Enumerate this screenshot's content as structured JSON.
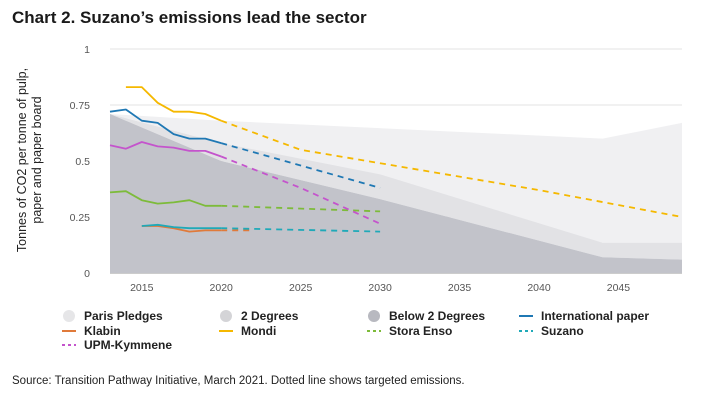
{
  "title": "Chart 2. Suzano’s emissions lead the sector",
  "source": "Source: Transition Pathway Initiative, March 2021. Dotted line shows targeted emissions.",
  "chart_data": {
    "type": "line",
    "ylabel_lines": [
      "Tonnes of CO2 per tonne of pulp,",
      "paper and paper board"
    ],
    "xlabel": "",
    "xlim": [
      2013,
      2049
    ],
    "ylim": [
      0,
      1
    ],
    "x_ticks": [
      2015,
      2020,
      2025,
      2030,
      2035,
      2040,
      2045
    ],
    "y_ticks": [
      {
        "value": 0,
        "label": "0"
      },
      {
        "value": 0.25,
        "label": "0.25"
      },
      {
        "value": 0.5,
        "label": "0.5"
      },
      {
        "value": 0.75,
        "label": "0.75"
      },
      {
        "value": 1,
        "label": "1"
      }
    ],
    "grid": "horizontal",
    "legend_position": "bottom",
    "bands": [
      {
        "name": "Paris Pledges",
        "color": "#f0f0f2",
        "legend_color": "#e6e6e8",
        "x": [
          2013,
          2020,
          2044,
          2049
        ],
        "lower": [
          0.71,
          0.58,
          0.135,
          0.135
        ],
        "upper": [
          0.71,
          0.68,
          0.6,
          0.67
        ]
      },
      {
        "name": "2 Degrees",
        "color": "#e2e2e5",
        "legend_color": "#d4d4d7",
        "x": [
          2013,
          2020,
          2030,
          2044,
          2049
        ],
        "lower": [
          0.71,
          0.5,
          0.33,
          0.07,
          0.06
        ],
        "upper": [
          0.71,
          0.58,
          0.44,
          0.135,
          0.135
        ]
      },
      {
        "name": "Below 2 Degrees",
        "color": "#c2c3ca",
        "legend_color": "#b8b9c0",
        "x": [
          2013,
          2020,
          2030,
          2044,
          2049
        ],
        "lower": [
          0,
          0,
          0,
          0,
          0
        ],
        "upper": [
          0.71,
          0.5,
          0.33,
          0.07,
          0.06
        ]
      }
    ],
    "series": [
      {
        "name": "International paper",
        "color": "#1f78b4",
        "actual": {
          "x": [
            2013,
            2014,
            2015,
            2016,
            2017,
            2018,
            2019,
            2020
          ],
          "y": [
            0.72,
            0.73,
            0.68,
            0.67,
            0.62,
            0.6,
            0.6,
            0.58
          ]
        },
        "target": {
          "x": [
            2020,
            2025,
            2030
          ],
          "y": [
            0.58,
            0.48,
            0.38
          ]
        }
      },
      {
        "name": "Klabin",
        "color": "#e07a3a",
        "actual": {
          "x": [
            2015,
            2016,
            2017,
            2018,
            2019,
            2020
          ],
          "y": [
            0.21,
            0.21,
            0.2,
            0.185,
            0.19,
            0.19
          ]
        },
        "target": {
          "x": [
            2020,
            2022
          ],
          "y": [
            0.19,
            0.19
          ]
        }
      },
      {
        "name": "Mondi",
        "color": "#f5b800",
        "actual": {
          "x": [
            2014,
            2015,
            2016,
            2017,
            2018,
            2019,
            2020
          ],
          "y": [
            0.83,
            0.83,
            0.76,
            0.72,
            0.72,
            0.71,
            0.68
          ]
        },
        "target": {
          "x": [
            2020,
            2025,
            2030,
            2040,
            2049
          ],
          "y": [
            0.68,
            0.55,
            0.49,
            0.37,
            0.25
          ]
        }
      },
      {
        "name": "Stora Enso",
        "color": "#7dbb3a",
        "actual": {
          "x": [
            2013,
            2014,
            2015,
            2016,
            2017,
            2018,
            2019,
            2020
          ],
          "y": [
            0.36,
            0.365,
            0.325,
            0.31,
            0.315,
            0.325,
            0.3,
            0.3
          ]
        },
        "target": {
          "x": [
            2020,
            2030
          ],
          "y": [
            0.3,
            0.275
          ]
        }
      },
      {
        "name": "UPM-Kymmene",
        "color": "#c454cc",
        "actual": {
          "x": [
            2013,
            2014,
            2015,
            2016,
            2017,
            2018,
            2019,
            2020
          ],
          "y": [
            0.57,
            0.555,
            0.585,
            0.565,
            0.56,
            0.545,
            0.545,
            0.52
          ]
        },
        "target": {
          "x": [
            2020,
            2025,
            2030
          ],
          "y": [
            0.52,
            0.38,
            0.22
          ]
        }
      },
      {
        "name": "Suzano",
        "color": "#1fa9b8",
        "actual": {
          "x": [
            2015,
            2016,
            2017,
            2018,
            2019,
            2020
          ],
          "y": [
            0.21,
            0.215,
            0.205,
            0.2,
            0.2,
            0.2
          ]
        },
        "target": {
          "x": [
            2020,
            2030
          ],
          "y": [
            0.2,
            0.185
          ]
        }
      }
    ],
    "legend_rows": [
      [
        {
          "label": "Paris Pledges",
          "kind": "circle",
          "color": "#e6e6e8"
        },
        {
          "label": "2 Degrees",
          "kind": "circle",
          "color": "#d4d4d7"
        },
        {
          "label": "Below 2 Degrees",
          "kind": "circle",
          "color": "#b8b9c0"
        },
        {
          "label": "International paper",
          "kind": "line",
          "color": "#1f78b4"
        }
      ],
      [
        {
          "label": "Klabin",
          "kind": "line",
          "color": "#e07a3a"
        },
        {
          "label": "Mondi",
          "kind": "line",
          "color": "#f5b800"
        },
        {
          "label": "Stora Enso",
          "kind": "dash",
          "color": "#7dbb3a"
        },
        {
          "label": "Suzano",
          "kind": "dash",
          "color": "#1fa9b8"
        }
      ],
      [
        {
          "label": "UPM-Kymmene",
          "kind": "dash",
          "color": "#c454cc"
        }
      ]
    ]
  }
}
